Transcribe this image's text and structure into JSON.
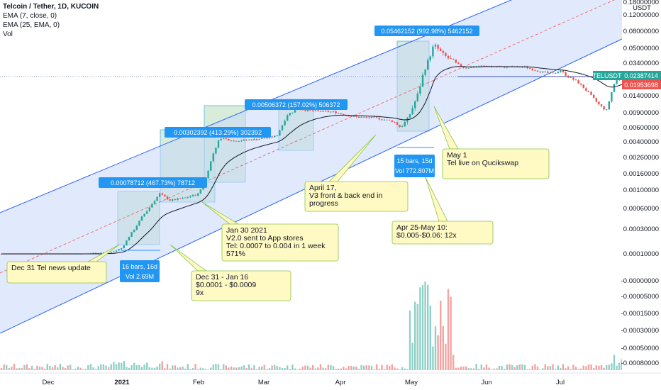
{
  "header": {
    "title": "Telcoin / Tether, 1D, KUCOIN",
    "ema7": "EMA (7, close, 0)",
    "ema25": "EMA (25, EMA, 0)",
    "vol": "Vol",
    "currency": "USDT"
  },
  "colors": {
    "up": "#26a69a",
    "down": "#ef5350",
    "vol_up": "#8fd1c8",
    "vol_down": "#f4a3a1",
    "channel_fill": "#c9d8fb",
    "channel_line": "#2962ff",
    "range_green": "#c8e6c9",
    "measure_blue": "#2196f3",
    "callout_bg": "#fff9c4",
    "callout_border": "#8bc34a",
    "ema_line": "#131722",
    "price_tag": "#26a69a",
    "price_tag2": "#ef5350",
    "hline": "#3f51b5"
  },
  "chart_data": {
    "type": "candlestick",
    "symbol": "TELUSDT",
    "timeframe": "1D",
    "price_scale": "log",
    "right_axis_ticks": [
      "0.18000000",
      "0.12000000",
      "0.08000000",
      "0.05000000",
      "0.03400000",
      "0.02100000",
      "0.01400000",
      "0.00900000",
      "0.00600000",
      "0.00400000",
      "0.00260000",
      "0.00160000",
      "0.00100000",
      "0.00060000",
      "0.00030000",
      "0.00010000",
      "-0.00000000",
      "-0.00005000",
      "-0.00015000",
      "-0.00030000",
      "-0.00050000",
      "-0.00080000"
    ],
    "x_ticks": [
      "Dec",
      "2021",
      "Feb",
      "Mar",
      "Apr",
      "May",
      "Jun",
      "Jul"
    ],
    "last_price_tag": "TELUSDT",
    "last_price": "0.02387414",
    "ema_tag": "0.01953698",
    "measurements": [
      {
        "text": "0.00078712 (467.73%) 78712"
      },
      {
        "text": "0.00302392 (413.29%) 302392"
      },
      {
        "text": "0.00506372 (157.02%) 506372"
      },
      {
        "text": "0.05462152 (992.98%) 5462152"
      }
    ],
    "range_boxes": [
      {
        "line1": "16 bars, 16d",
        "line2": "Vol 2.69M"
      },
      {
        "line1": "15 bars, 15d",
        "line2": "Vol 772.807M"
      }
    ],
    "callouts": [
      {
        "lines": [
          "Dec 31 Tel news update"
        ]
      },
      {
        "lines": [
          "Dec 31 - Jan 16",
          "$0.0001 - $0.0009",
          "9x"
        ]
      },
      {
        "lines": [
          "Jan 30 2021",
          "V2.0 sent to App stores",
          "Tel: 0.0007 to 0.004 in 1 week",
          "571%"
        ]
      },
      {
        "lines": [
          "April 17,",
          "V3 front & back end in",
          "progress"
        ]
      },
      {
        "lines": [
          "May 1",
          "Tel live on Qucikswap"
        ]
      },
      {
        "lines": [
          "Apr 25-May 10:",
          "$0.005-$0.06: 12x"
        ]
      }
    ]
  }
}
